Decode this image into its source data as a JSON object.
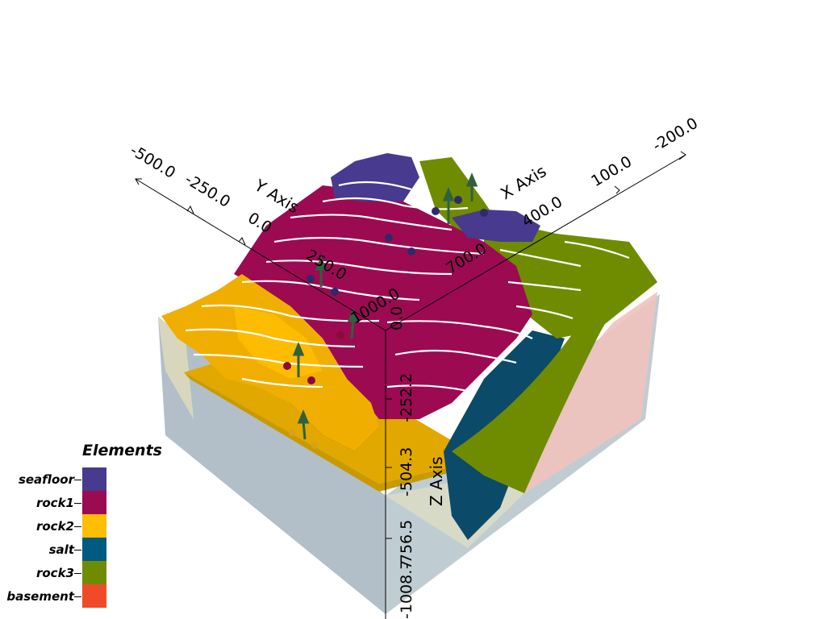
{
  "legend": {
    "title": "Elements",
    "items": [
      {
        "label": "seafloor",
        "color": "#473a8f"
      },
      {
        "label": "rock1",
        "color": "#9c0a52"
      },
      {
        "label": "rock2",
        "color": "#ffbe00"
      },
      {
        "label": "salt",
        "color": "#005a82"
      },
      {
        "label": "rock3",
        "color": "#6f8c00"
      },
      {
        "label": "basement",
        "color": "#f04b28"
      }
    ]
  },
  "axes": {
    "x": {
      "title": "X Axis",
      "ticks": [
        "-200.0",
        "100.0",
        "400.0",
        "700.0",
        "1000.0"
      ]
    },
    "y": {
      "title": "Y Axis",
      "ticks": [
        "-500.0",
        "-250.0",
        "0.0",
        "250.0"
      ]
    },
    "z": {
      "title": "Z Axis",
      "ticks": [
        "0.0",
        "-252.2",
        "-504.3",
        "-756.5",
        "-1008.7"
      ]
    }
  },
  "colors": {
    "box_face": "#aebcc6",
    "side_face": "#f0c2bd",
    "contour": "#ffffff"
  }
}
